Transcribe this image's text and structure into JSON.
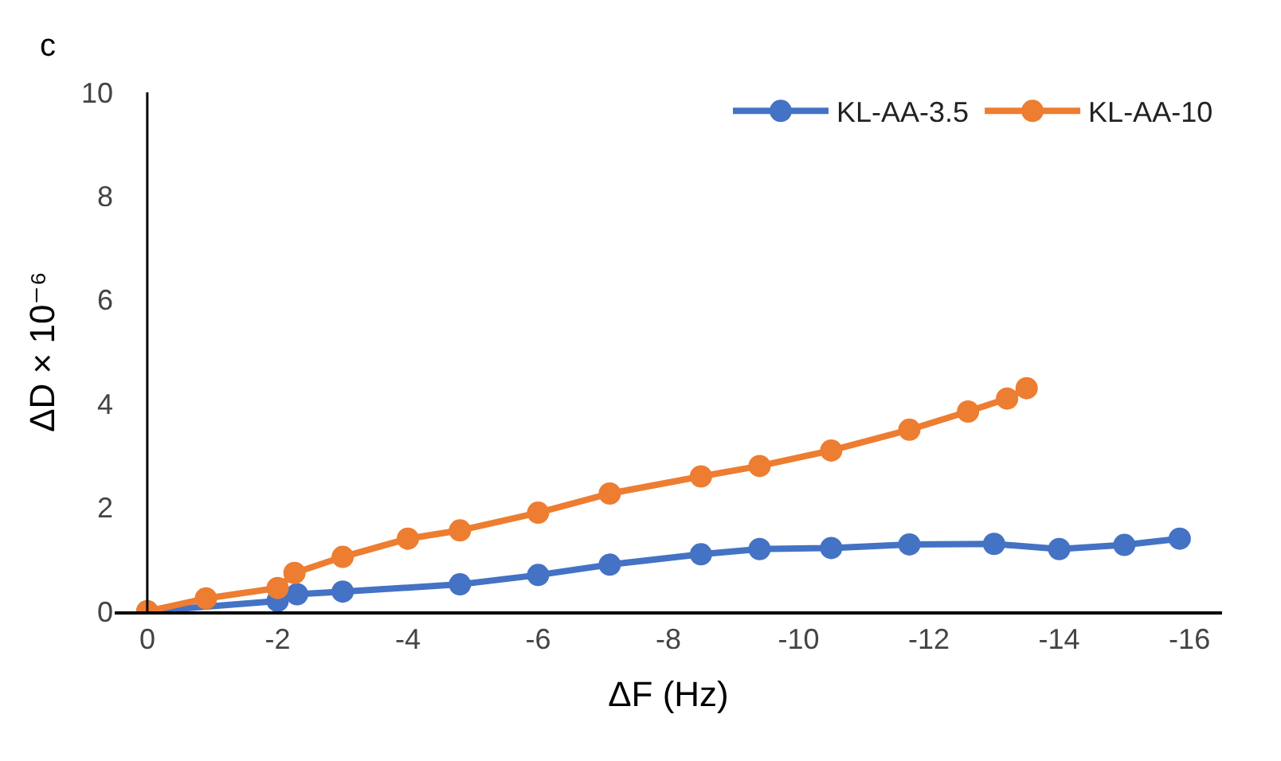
{
  "chart_data": {
    "type": "line",
    "xlabel": "ΔF (Hz)",
    "ylabel": "ΔD × 10⁻⁶",
    "annotations": [
      "c"
    ],
    "xlim": [
      0.5,
      -16.5
    ],
    "xticks": [
      0,
      -2,
      -4,
      -6,
      -8,
      -10,
      -12,
      -14,
      -16
    ],
    "ylim": [
      0,
      10
    ],
    "yticks": [
      0,
      2,
      4,
      6,
      8,
      10
    ],
    "grid": false,
    "legend": "top right",
    "marker": "circle",
    "line_style": "solid",
    "series": [
      {
        "name": "KL-AA-3.5",
        "color": "#4472c4",
        "x": [
          0,
          -2,
          -2.3,
          -3,
          -4.8,
          -6,
          -7.1,
          -8.5,
          -9.4,
          -10.5,
          -11.7,
          -13,
          -14,
          -15,
          -15.85
        ],
        "values": [
          0,
          0.2,
          0.33,
          0.38,
          0.52,
          0.7,
          0.9,
          1.1,
          1.2,
          1.22,
          1.29,
          1.3,
          1.2,
          1.28,
          1.4
        ]
      },
      {
        "name": "KL-AA-10",
        "color": "#ed7d31",
        "x": [
          0,
          -0.9,
          -2,
          -2.26,
          -3,
          -4,
          -4.8,
          -6,
          -7.1,
          -8.5,
          -9.4,
          -10.5,
          -11.7,
          -12.6,
          -13.2,
          -13.5
        ],
        "values": [
          0,
          0.25,
          0.45,
          0.74,
          1.05,
          1.4,
          1.56,
          1.9,
          2.27,
          2.6,
          2.8,
          3.1,
          3.5,
          3.85,
          4.1,
          4.3
        ]
      }
    ]
  }
}
